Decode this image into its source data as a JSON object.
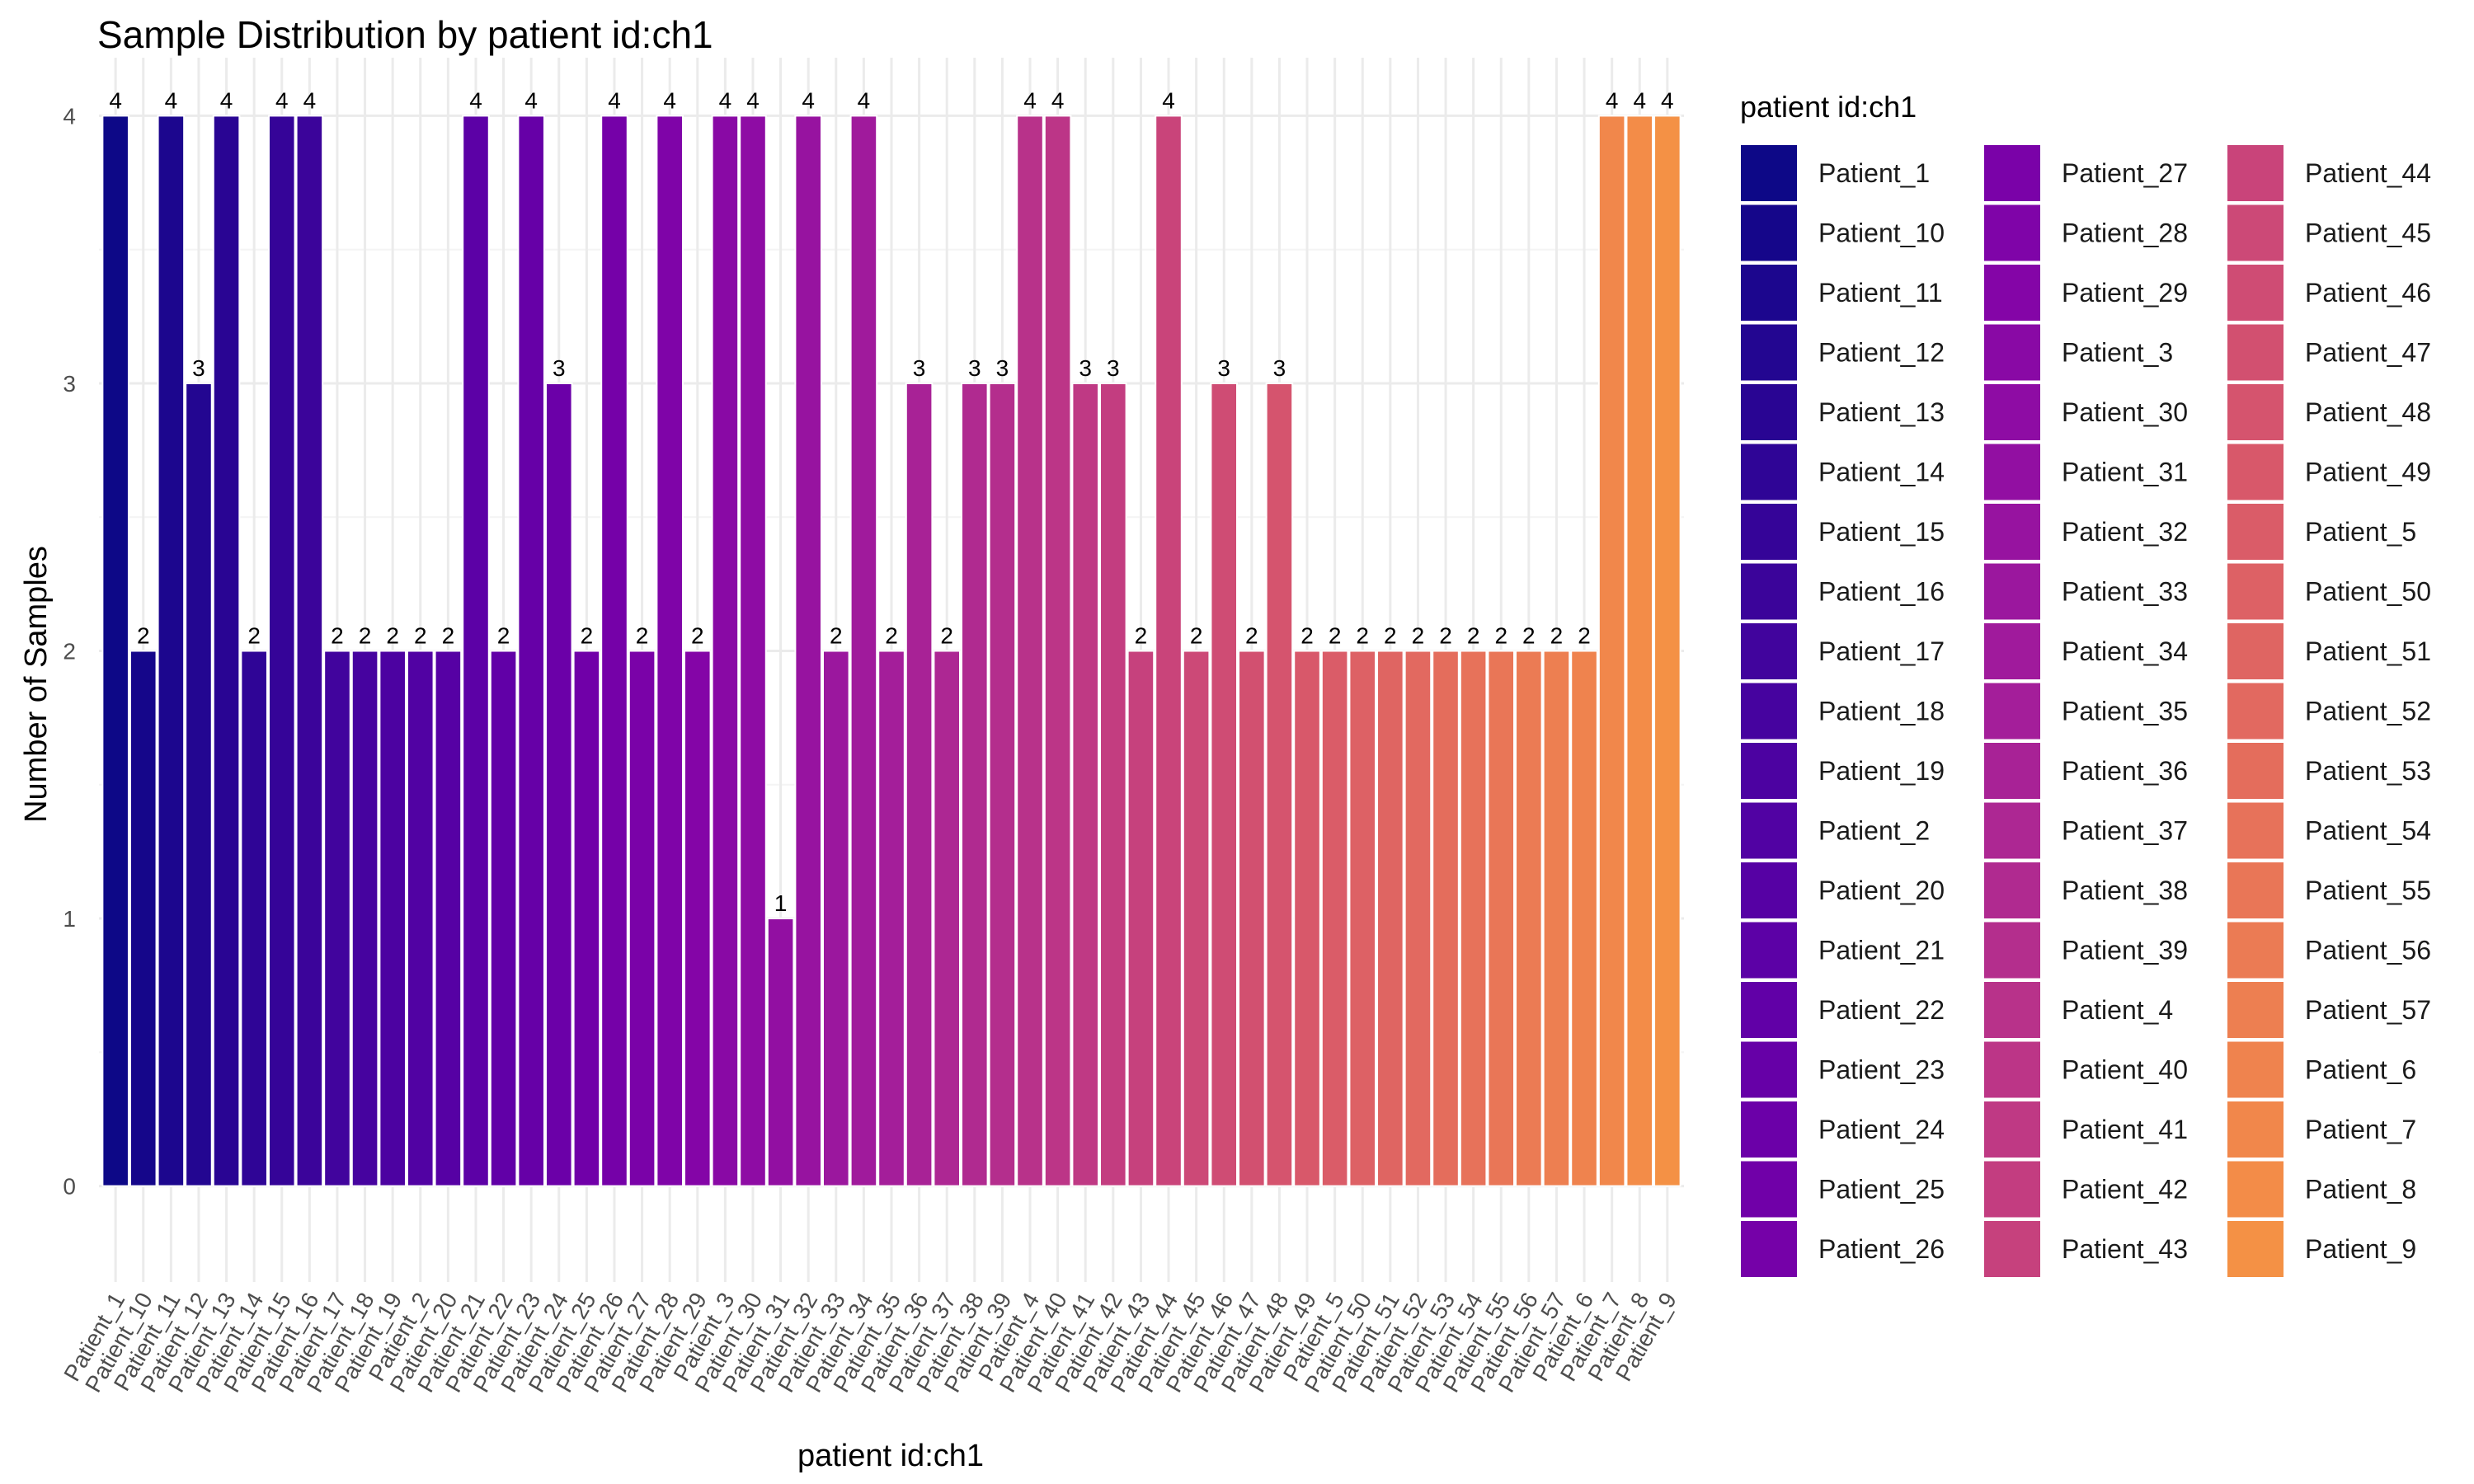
{
  "chart_data": {
    "type": "bar",
    "title": "Sample Distribution by patient id:ch1",
    "xlabel": "patient id:ch1",
    "ylabel": "Number of Samples",
    "ylim": [
      0,
      4
    ],
    "y_ticks": [
      "0",
      "1",
      "2",
      "3",
      "4"
    ],
    "grid": true,
    "legend_position": "right",
    "legend_title": "patient id:ch1",
    "palette": "plasma",
    "categories": [
      "Patient_1",
      "Patient_10",
      "Patient_11",
      "Patient_12",
      "Patient_13",
      "Patient_14",
      "Patient_15",
      "Patient_16",
      "Patient_17",
      "Patient_18",
      "Patient_19",
      "Patient_2",
      "Patient_20",
      "Patient_21",
      "Patient_22",
      "Patient_23",
      "Patient_24",
      "Patient_25",
      "Patient_26",
      "Patient_27",
      "Patient_28",
      "Patient_29",
      "Patient_3",
      "Patient_30",
      "Patient_31",
      "Patient_32",
      "Patient_33",
      "Patient_34",
      "Patient_35",
      "Patient_36",
      "Patient_37",
      "Patient_38",
      "Patient_39",
      "Patient_4",
      "Patient_40",
      "Patient_41",
      "Patient_42",
      "Patient_43",
      "Patient_44",
      "Patient_45",
      "Patient_46",
      "Patient_47",
      "Patient_48",
      "Patient_49",
      "Patient_5",
      "Patient_50",
      "Patient_51",
      "Patient_52",
      "Patient_53",
      "Patient_54",
      "Patient_55",
      "Patient_56",
      "Patient_57",
      "Patient_6",
      "Patient_7",
      "Patient_8",
      "Patient_9"
    ],
    "values": [
      4,
      2,
      4,
      3,
      4,
      2,
      4,
      4,
      2,
      2,
      2,
      2,
      2,
      4,
      2,
      4,
      3,
      2,
      4,
      2,
      4,
      2,
      4,
      4,
      1,
      4,
      2,
      4,
      2,
      3,
      2,
      3,
      3,
      4,
      4,
      3,
      3,
      2,
      4,
      2,
      3,
      2,
      3,
      2,
      2,
      2,
      2,
      2,
      2,
      2,
      2,
      2,
      2,
      2,
      4,
      4,
      4
    ],
    "colors": [
      "#0d0887",
      "#15068a",
      "#1c068e",
      "#230691",
      "#290593",
      "#2f0596",
      "#350498",
      "#3b049a",
      "#41049d",
      "#46039f",
      "#4c02a1",
      "#5102a3",
      "#5601a4",
      "#5c01a6",
      "#6100a7",
      "#6600a7",
      "#6b00a8",
      "#7000a8",
      "#7501a8",
      "#7a02a8",
      "#7f04a8",
      "#8405a7",
      "#8909a5",
      "#8e0ca4",
      "#920fa2",
      "#9713a0",
      "#9b179e",
      "#a01a9c",
      "#a41e9a",
      "#a82296",
      "#ad2793",
      "#b02a90",
      "#b42e8d",
      "#b8328a",
      "#bc3587",
      "#bf3984",
      "#c33d80",
      "#c6417d",
      "#c9447a",
      "#cc4977",
      "#cf4c74",
      "#d25070",
      "#d5546e",
      "#d8586a",
      "#da5c68",
      "#dd6165",
      "#df6562",
      "#e26960",
      "#e46d5c",
      "#e7725a",
      "#e97657",
      "#eb7b54",
      "#ed7f51",
      "#ef834e",
      "#f1874b",
      "#f38c48",
      "#f49145"
    ]
  }
}
